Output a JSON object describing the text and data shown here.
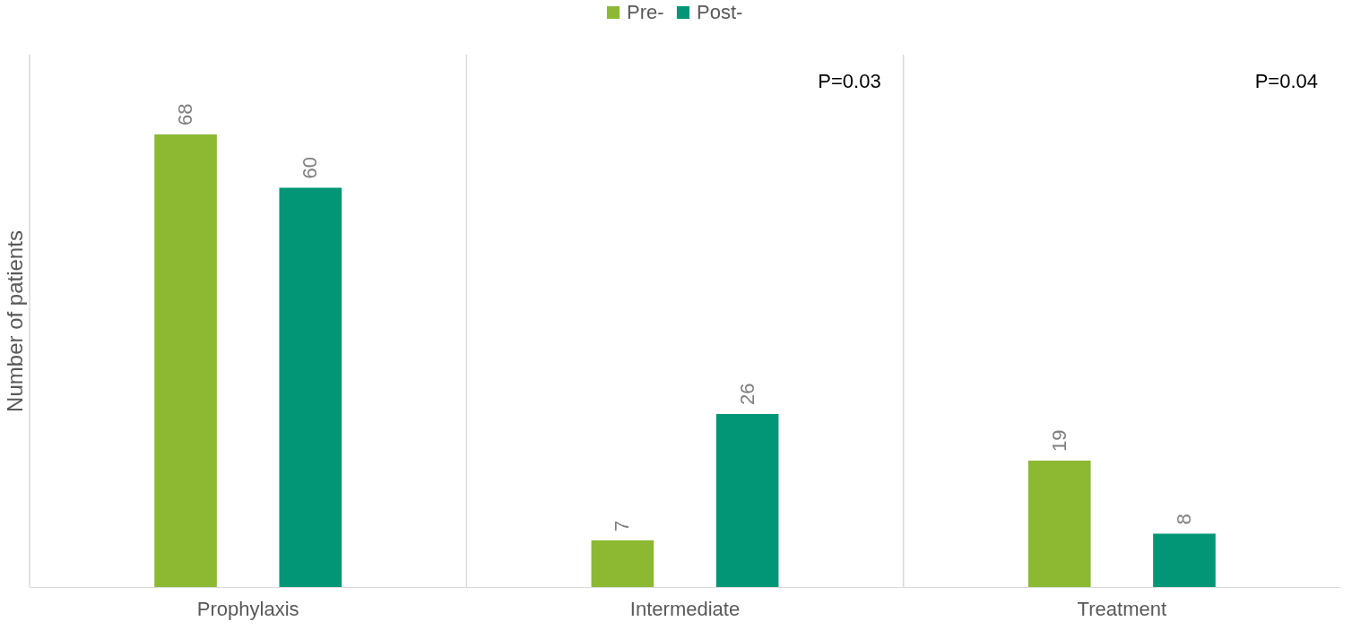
{
  "chart_data": {
    "type": "bar",
    "ylabel": "Number of patients",
    "categories": [
      "Prophylaxis",
      "Intermediate",
      "Treatment"
    ],
    "series": [
      {
        "name": "Pre-",
        "color": "#8cb832",
        "values": [
          68,
          7,
          19
        ]
      },
      {
        "name": "Post-",
        "color": "#029676",
        "values": [
          60,
          26,
          8
        ]
      }
    ],
    "ylim": [
      0,
      80
    ],
    "tick_labels": "x",
    "data_labels": true,
    "legend": "top",
    "grid": "x",
    "annotations": [
      "P=0.03",
      "P=0.04"
    ]
  }
}
